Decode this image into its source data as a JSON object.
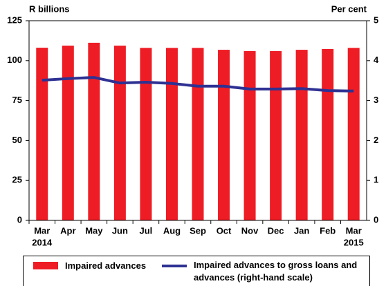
{
  "chart_data": {
    "type": "bar_line",
    "y_label": "R billions",
    "y2_label": "Per cent",
    "categories": [
      "Mar",
      "Apr",
      "May",
      "Jun",
      "Jul",
      "Aug",
      "Sep",
      "Oct",
      "Nov",
      "Dec",
      "Jan",
      "Feb",
      "Mar"
    ],
    "year_labels": [
      "2014",
      null,
      null,
      null,
      null,
      null,
      null,
      null,
      null,
      null,
      null,
      null,
      "2015"
    ],
    "series": [
      {
        "name": "Impaired advances",
        "type": "bar",
        "color": "#ee1c25",
        "values": [
          108.1,
          109.4,
          111.2,
          109.4,
          108,
          108,
          108,
          106.8,
          106,
          106,
          106.8,
          107.3,
          108
        ]
      },
      {
        "name": "Impaired advances to gross loans and advances (right-hand scale)",
        "type": "line",
        "axis": "y2",
        "color": "#2e3192",
        "values": [
          3.51,
          3.55,
          3.58,
          3.44,
          3.46,
          3.43,
          3.36,
          3.36,
          3.29,
          3.29,
          3.3,
          3.25,
          3.24
        ]
      }
    ],
    "ylim": [
      0,
      125
    ],
    "yticks": [
      0,
      25,
      50,
      75,
      100,
      125
    ],
    "y2lim": [
      0,
      5
    ],
    "y2ticks": [
      0,
      1,
      2,
      3,
      4,
      5
    ]
  }
}
